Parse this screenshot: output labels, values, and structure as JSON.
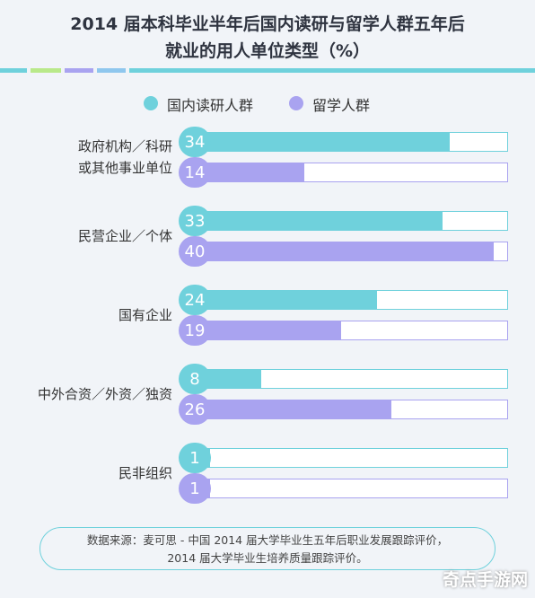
{
  "title_line1": "2014 届本科毕业半年后国内读研与留学人群五年后",
  "title_line2": "就业的用人单位类型（%）",
  "colors": {
    "teal": "#6fd1dc",
    "purple": "#a9a3f0",
    "stripe": [
      "#6fd1dc",
      "#b9e98a",
      "#a9a3f0",
      "#8fc7ee",
      "#6fd1dc"
    ]
  },
  "chart_data": {
    "type": "bar",
    "orientation": "horizontal",
    "categories": [
      "政府机构／科研或其他事业单位",
      "民营企业／个体",
      "国有企业",
      "中外合资／外资／独资",
      "民非组织"
    ],
    "category_labels": [
      [
        "政府机构／科研",
        "或其他事业单位"
      ],
      [
        "民营企业／个体"
      ],
      [
        "国有企业"
      ],
      [
        "中外合资／外资／独资"
      ],
      [
        "民非组织"
      ]
    ],
    "series": [
      {
        "name": "国内读研人群",
        "values": [
          34,
          33,
          24,
          8,
          1
        ],
        "labels": [
          "34",
          "33",
          "24",
          "8",
          "1"
        ],
        "color": "#6fd1dc"
      },
      {
        "name": "留学人群",
        "values": [
          14,
          40,
          19,
          26,
          1
        ],
        "labels": [
          "14",
          "40",
          "19",
          "26",
          "1"
        ],
        "color": "#a9a3f0"
      }
    ],
    "xlim": [
      0,
      42
    ],
    "legend": "top-center",
    "grid": false
  },
  "source_line1": "数据来源：麦可思 - 中国 2014 届大学毕业生五年后职业发展跟踪评价，",
  "source_line2": "2014 届大学毕业生培养质量跟踪评价。",
  "watermark": "奇点手游网"
}
